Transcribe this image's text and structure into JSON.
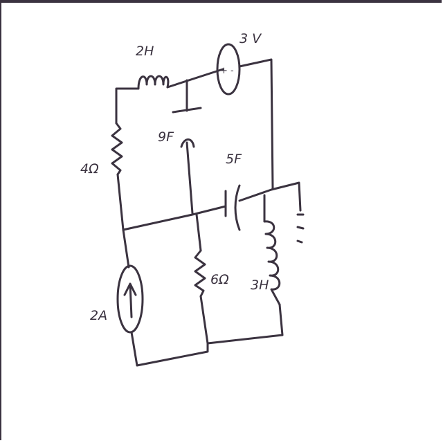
{
  "components": {
    "inductor_top": "2H",
    "voltage_source": "3 V",
    "voltage_polarity": "+ -",
    "capacitor_mid": "9F",
    "capacitor_right": "5F",
    "resistor_left": "4Ω",
    "resistor_mid": "6Ω",
    "inductor_right": "3H",
    "current_source": "2A"
  },
  "colors": {
    "ink": "#3b3340",
    "paper": "#ffffff"
  }
}
